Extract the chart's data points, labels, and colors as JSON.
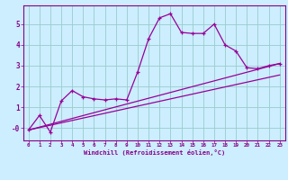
{
  "bg_color": "#cceeff",
  "line_color": "#990099",
  "grid_color": "#99cccc",
  "xlabel": "Windchill (Refroidissement éolien,°C)",
  "xlim": [
    -0.5,
    23.5
  ],
  "ylim": [
    -0.6,
    5.9
  ],
  "yticks": [
    0,
    1,
    2,
    3,
    4,
    5
  ],
  "xticks": [
    0,
    1,
    2,
    3,
    4,
    5,
    6,
    7,
    8,
    9,
    10,
    11,
    12,
    13,
    14,
    15,
    16,
    17,
    18,
    19,
    20,
    21,
    22,
    23
  ],
  "series1_x": [
    0,
    1,
    2,
    3,
    4,
    5,
    6,
    7,
    8,
    9,
    10,
    11,
    12,
    13,
    14,
    15,
    16,
    17,
    18,
    19,
    20,
    21,
    22,
    23
  ],
  "series1_y": [
    -0.1,
    0.6,
    -0.2,
    1.3,
    1.8,
    1.5,
    1.4,
    1.35,
    1.4,
    1.35,
    2.7,
    4.3,
    5.3,
    5.5,
    4.6,
    4.55,
    4.55,
    5.0,
    4.0,
    3.7,
    2.9,
    2.85,
    3.0,
    3.1
  ],
  "series2_x": [
    0,
    23
  ],
  "series2_y": [
    -0.1,
    3.1
  ],
  "series3_x": [
    0,
    23
  ],
  "series3_y": [
    -0.1,
    2.55
  ],
  "figsize": [
    3.2,
    2.0
  ],
  "dpi": 100
}
